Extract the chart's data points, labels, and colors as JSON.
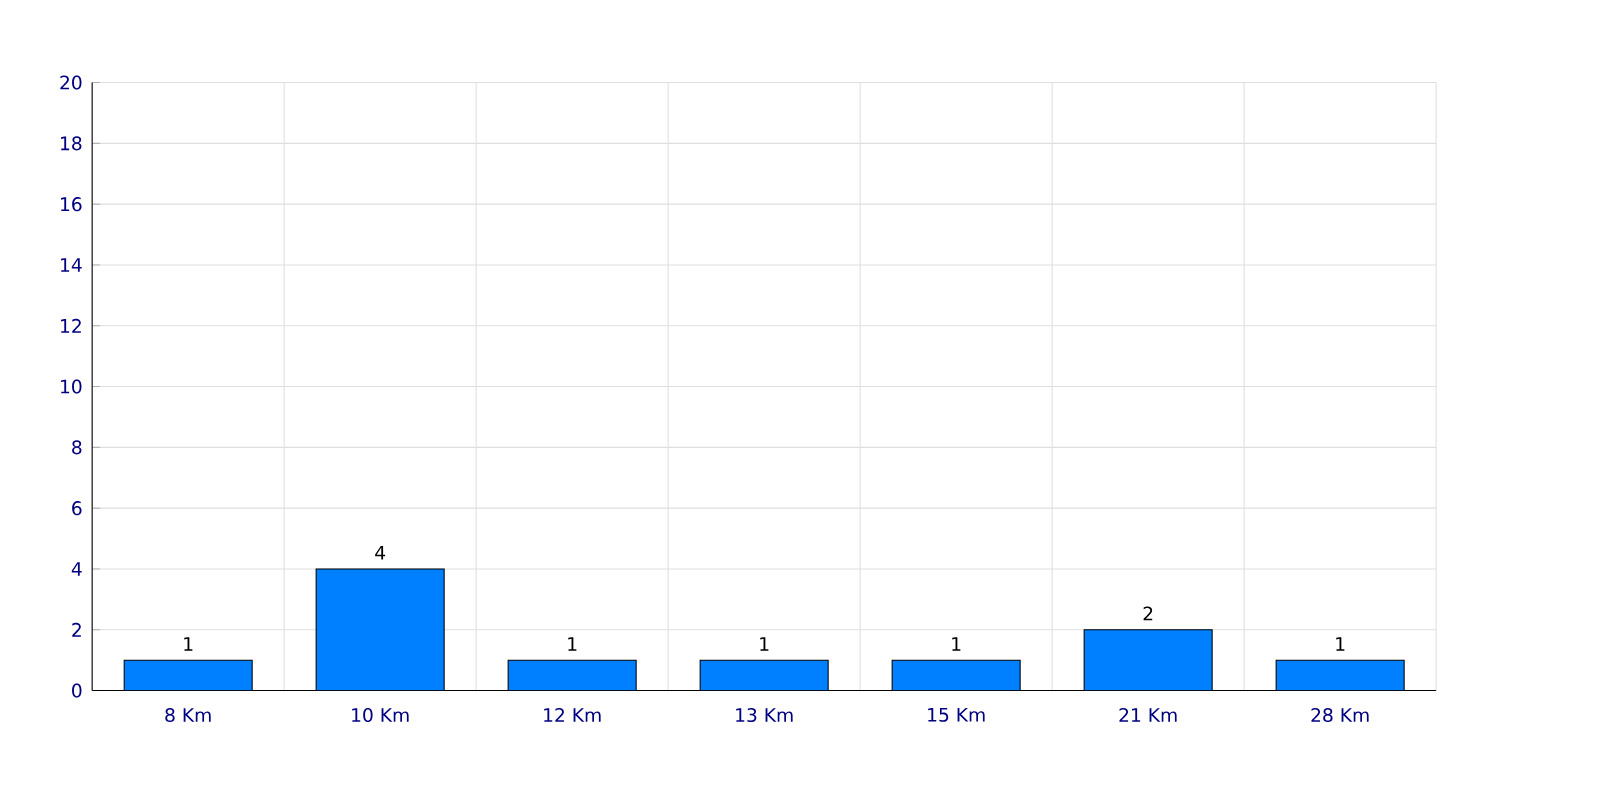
{
  "chart_data": {
    "type": "bar",
    "categories": [
      "8 Km",
      "10 Km",
      "12 Km",
      "13 Km",
      "15 Km",
      "21 Km",
      "28 Km"
    ],
    "values": [
      1,
      4,
      1,
      1,
      1,
      2,
      1
    ],
    "color": "#0080ff",
    "ylim": [
      0,
      20
    ],
    "yticks": [
      0,
      2,
      4,
      6,
      8,
      10,
      12,
      14,
      16,
      18,
      20
    ],
    "grid": true,
    "data_labels": true
  }
}
